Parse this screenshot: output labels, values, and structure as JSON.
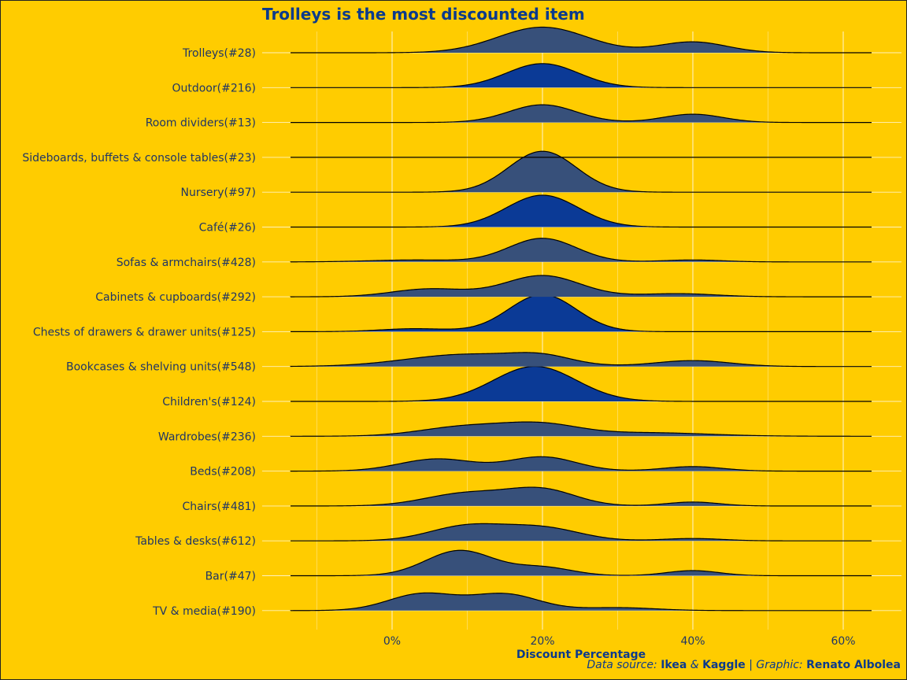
{
  "chart_data": {
    "type": "ridgeline",
    "title": "Trolleys is the most discounted item",
    "xlabel": "Discount Percentage",
    "ylabel": "",
    "xlim": [
      -0.16,
      0.63
    ],
    "x_ticks": [
      0,
      0.2,
      0.4,
      0.6
    ],
    "x_tick_labels": [
      "0%",
      "20%",
      "40%",
      "60%"
    ],
    "grid": true,
    "categories": [
      "Trolleys(#28)",
      "Outdoor(#216)",
      "Room dividers(#13)",
      "Sideboards, buffets & console tables(#23)",
      "Nursery(#97)",
      "Café(#26)",
      "Sofas & armchairs(#428)",
      "Cabinets & cupboards(#292)",
      "Chests of drawers & drawer units(#125)",
      "Bookcases & shelving units(#548)",
      "Children's(#124)",
      "Wardrobes(#236)",
      "Beds(#208)",
      "Chairs(#481)",
      "Tables & desks(#612)",
      "Bar(#47)",
      "TV & media(#190)"
    ],
    "series": [
      {
        "category": "Trolleys(#28)",
        "highlight": false,
        "peaks": [
          [
            0.2,
            0.06,
            1.3
          ],
          [
            0.4,
            0.045,
            0.55
          ]
        ]
      },
      {
        "category": "Outdoor(#216)",
        "highlight": true,
        "peaks": [
          [
            0.2,
            0.048,
            1.22
          ]
        ]
      },
      {
        "category": "Room dividers(#13)",
        "highlight": false,
        "peaks": [
          [
            0.2,
            0.045,
            0.9
          ],
          [
            0.4,
            0.04,
            0.42
          ]
        ]
      },
      {
        "category": "Sideboards, buffets & console tables(#23)",
        "highlight": false,
        "peaks": []
      },
      {
        "category": "Nursery(#97)",
        "highlight": false,
        "peaks": [
          [
            0.2,
            0.045,
            2.08
          ]
        ]
      },
      {
        "category": "Café(#26)",
        "highlight": true,
        "peaks": [
          [
            0.2,
            0.048,
            1.62
          ]
        ]
      },
      {
        "category": "Sofas & armchairs(#428)",
        "highlight": false,
        "peaks": [
          [
            0.2,
            0.045,
            1.2
          ],
          [
            0.03,
            0.06,
            0.1
          ],
          [
            0.4,
            0.04,
            0.1
          ]
        ]
      },
      {
        "category": "Cabinets & cupboards(#292)",
        "highlight": false,
        "peaks": [
          [
            0.2,
            0.05,
            1.08
          ],
          [
            0.05,
            0.05,
            0.4
          ],
          [
            0.38,
            0.05,
            0.16
          ]
        ]
      },
      {
        "category": "Chests of drawers & drawer units(#125)",
        "highlight": true,
        "peaks": [
          [
            0.2,
            0.045,
            1.88
          ],
          [
            0.03,
            0.045,
            0.15
          ]
        ]
      },
      {
        "category": "Bookcases & shelving units(#548)",
        "highlight": false,
        "peaks": [
          [
            0.1,
            0.08,
            0.62
          ],
          [
            0.2,
            0.04,
            0.38
          ],
          [
            0.4,
            0.05,
            0.3
          ]
        ]
      },
      {
        "category": "Children's(#124)",
        "highlight": true,
        "peaks": [
          [
            0.19,
            0.055,
            1.78
          ]
        ]
      },
      {
        "category": "Wardrobes(#236)",
        "highlight": false,
        "peaks": [
          [
            0.1,
            0.06,
            0.5
          ],
          [
            0.2,
            0.05,
            0.54
          ],
          [
            0.34,
            0.08,
            0.18
          ]
        ]
      },
      {
        "category": "Beds(#208)",
        "highlight": false,
        "peaks": [
          [
            0.06,
            0.05,
            0.62
          ],
          [
            0.2,
            0.045,
            0.72
          ],
          [
            0.4,
            0.04,
            0.23
          ]
        ]
      },
      {
        "category": "Chairs(#481)",
        "highlight": false,
        "peaks": [
          [
            0.1,
            0.055,
            0.65
          ],
          [
            0.2,
            0.045,
            0.8
          ],
          [
            0.4,
            0.035,
            0.2
          ]
        ]
      },
      {
        "category": "Tables & desks(#612)",
        "highlight": false,
        "peaks": [
          [
            0.1,
            0.05,
            0.75
          ],
          [
            0.2,
            0.05,
            0.65
          ],
          [
            0.4,
            0.04,
            0.12
          ]
        ]
      },
      {
        "category": "Bar(#47)",
        "highlight": false,
        "peaks": [
          [
            0.09,
            0.045,
            1.28
          ],
          [
            0.2,
            0.04,
            0.42
          ],
          [
            0.4,
            0.035,
            0.26
          ]
        ]
      },
      {
        "category": "TV & media(#190)",
        "highlight": false,
        "peaks": [
          [
            0.04,
            0.045,
            0.85
          ],
          [
            0.15,
            0.045,
            0.83
          ],
          [
            0.3,
            0.05,
            0.15
          ]
        ]
      }
    ],
    "colors": {
      "background": "#FFCC00",
      "fill": "#37507A",
      "fill_highlight": "#0B3A96",
      "outline": "#000000",
      "grid": "#FFFFFF",
      "text": "#1F3566"
    }
  },
  "caption": {
    "prefix": "Data source:",
    "src1": "Ikea",
    "amp": "&",
    "src2": "Kaggle",
    "sep": "|",
    "graphic_label": "Graphic:",
    "author": "Renato Albolea"
  }
}
